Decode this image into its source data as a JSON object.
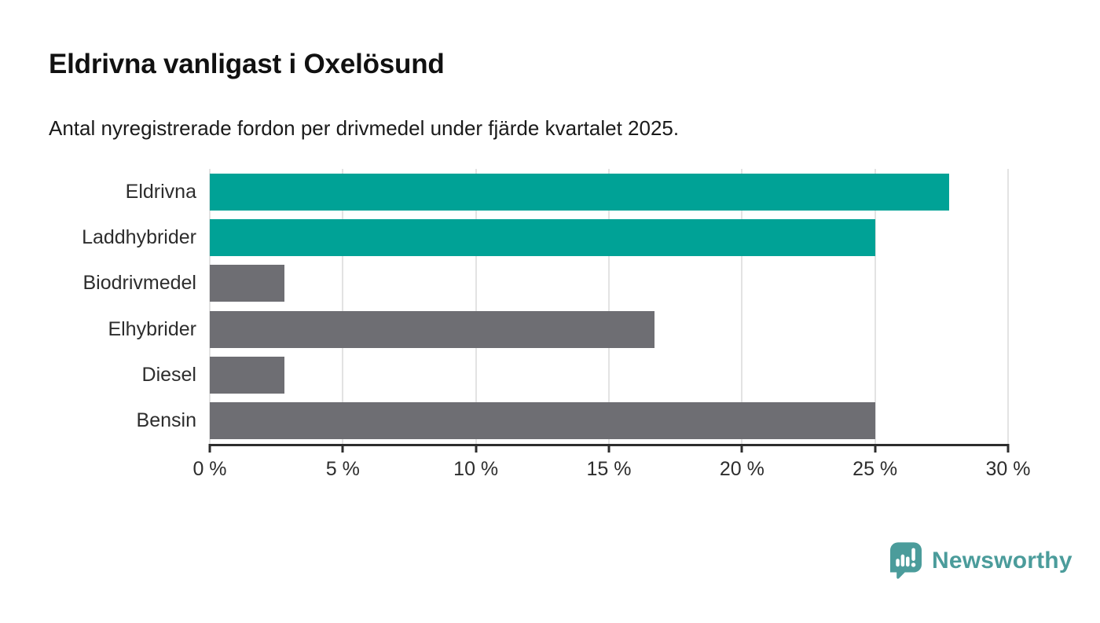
{
  "header": {
    "title": "Eldrivna vanligast i Oxelösund",
    "subtitle": "Antal nyregistrerade fordon per drivmedel under fjärde kvartalet 2025."
  },
  "chart_data": {
    "type": "bar",
    "orientation": "horizontal",
    "title": "Eldrivna vanligast i Oxelösund",
    "subtitle": "Antal nyregistrerade fordon per drivmedel under fjärde kvartalet 2025.",
    "categories": [
      "Eldrivna",
      "Laddhybrider",
      "Biodrivmedel",
      "Elhybrider",
      "Diesel",
      "Bensin"
    ],
    "values": [
      27.8,
      25.0,
      2.8,
      16.7,
      2.8,
      25.0
    ],
    "bar_colors": [
      "#00A296",
      "#00A296",
      "#6E6E73",
      "#6E6E73",
      "#6E6E73",
      "#6E6E73"
    ],
    "unit": "%",
    "xlim": [
      0,
      30
    ],
    "x_ticks": [
      0,
      5,
      10,
      15,
      20,
      25,
      30
    ],
    "x_tick_labels": [
      "0 %",
      "5 %",
      "10 %",
      "15 %",
      "20 %",
      "25 %",
      "30 %"
    ],
    "grid": true,
    "legend": false
  },
  "colors": {
    "highlight": "#00A296",
    "neutral": "#6E6E73",
    "axis": "#2D2D2D",
    "grid": "#E3E3E3",
    "brand": "#4B9C9B"
  },
  "branding": {
    "logo_text": "Newsworthy",
    "logo_icon": "speech-bubble-bar-chart-icon"
  }
}
